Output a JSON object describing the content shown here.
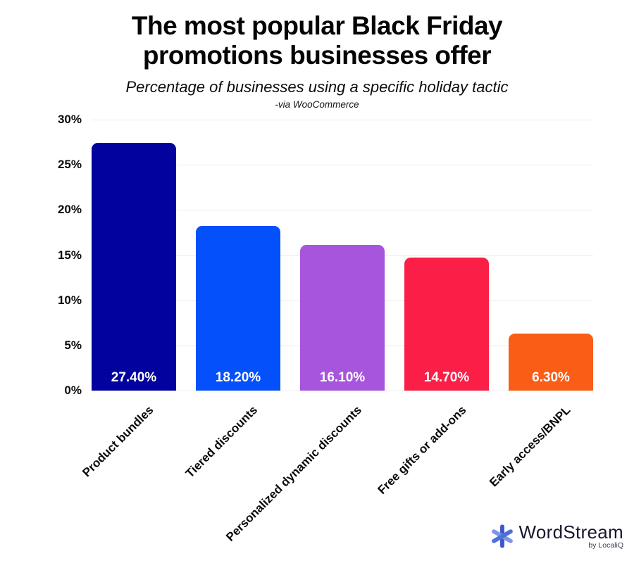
{
  "chart_data": {
    "type": "bar",
    "title": "The most popular Black Friday promotions businesses offer",
    "subtitle": "Percentage of businesses using a specific holiday tactic",
    "source": "-via WooCommerce",
    "categories": [
      "Product bundles",
      "Tiered discounts",
      "Personalized dynamic discounts",
      "Free gifts or add-ons",
      "Early access/BNPL"
    ],
    "values": [
      27.4,
      18.2,
      16.1,
      14.7,
      6.3
    ],
    "value_labels": [
      "27.40%",
      "18.20%",
      "16.10%",
      "14.70%",
      "6.30%"
    ],
    "bar_colors": [
      "#02029e",
      "#0450fa",
      "#a855dd",
      "#fb1e46",
      "#f95d16"
    ],
    "yticks": [
      "30%",
      "25%",
      "20%",
      "15%",
      "10%",
      "5%",
      "0%"
    ],
    "ylim": [
      0,
      30
    ],
    "xlabel": "",
    "ylabel": "",
    "grid": true,
    "legend": false,
    "value_label_color": "#ffffff",
    "gridline_color": "#ebebeb"
  },
  "footer": {
    "logo_name": "WordStream",
    "logo_sub": "by LocaliQ",
    "logo_icon": "asterisk-snowflake",
    "logo_icon_colors": [
      "#3f57c9",
      "#7d96e8",
      "#4e6fd8"
    ],
    "logo_text_color": "#17172f"
  }
}
